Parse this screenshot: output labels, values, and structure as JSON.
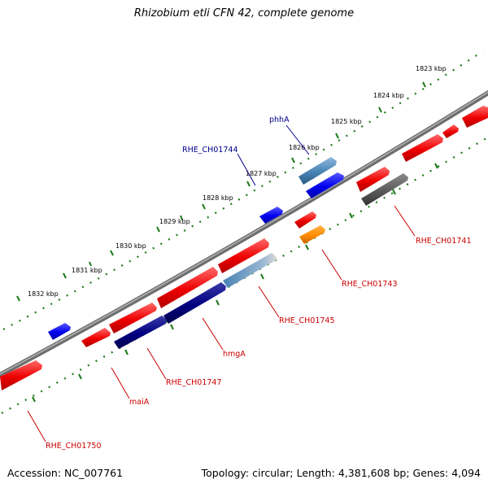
{
  "title": "Rhizobium etli CFN 42, complete genome",
  "footer": {
    "accession": "Accession: NC_007761",
    "topology": "Topology: circular; Length: 4,381,608 bp; Genes: 4,094"
  },
  "colors": {
    "backbone": "#808080",
    "tick_dots": "#1a7a1a",
    "label_red": "#cc0000",
    "label_blue": "#00008b",
    "gene_red": "#ff0000",
    "gene_blue": "#0000ff",
    "gene_navy": "#000080",
    "gene_steel": "#4682b4",
    "gene_orange": "#ff8c00",
    "gene_gray": "#555555"
  },
  "scale_labels": [
    "1823 kbp",
    "1824 kbp",
    "1825 kbp",
    "1826 kbp",
    "1827 kbp",
    "1828 kbp",
    "1829 kbp",
    "1830 kbp",
    "1831 kbp",
    "1832 kbp"
  ],
  "gene_labels": [
    {
      "text": "phhA",
      "color": "blue"
    },
    {
      "text": "RHE_CH01744",
      "color": "blue"
    },
    {
      "text": "RHE_CH01741",
      "color": "red"
    },
    {
      "text": "RHE_CH01743",
      "color": "red"
    },
    {
      "text": "RHE_CH01745",
      "color": "red"
    },
    {
      "text": "hmgA",
      "color": "red"
    },
    {
      "text": "RHE_CH01747",
      "color": "red"
    },
    {
      "text": "maiA",
      "color": "red"
    },
    {
      "text": "RHE_CH01750",
      "color": "red"
    }
  ]
}
